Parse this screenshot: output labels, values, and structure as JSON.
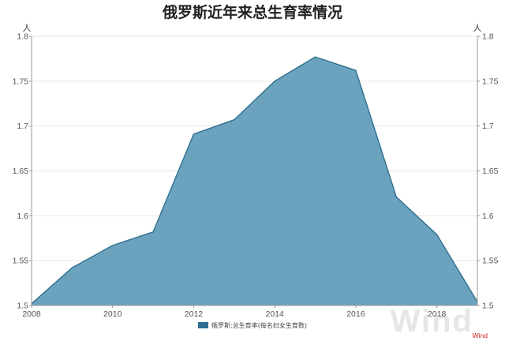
{
  "chart_data": {
    "type": "area",
    "title": "俄罗斯近年来总生育率情况",
    "x": [
      2008,
      2009,
      2010,
      2011,
      2012,
      2013,
      2014,
      2015,
      2016,
      2017,
      2018,
      2019
    ],
    "series": [
      {
        "name": "俄罗斯:总生育率(每名妇女生育数)",
        "values": [
          1.502,
          1.542,
          1.567,
          1.582,
          1.691,
          1.707,
          1.75,
          1.777,
          1.762,
          1.621,
          1.579,
          1.504
        ]
      }
    ],
    "x_ticks": [
      "2008",
      "2010",
      "2012",
      "2014",
      "2016",
      "2018"
    ],
    "y_ticks": [
      "1.5",
      "1.55",
      "1.6",
      "1.65",
      "1.7",
      "1.75",
      "1.8"
    ],
    "xlim": [
      2008,
      2019
    ],
    "ylim": [
      1.5,
      1.8
    ],
    "ylabel_left": "人",
    "ylabel_right": "人",
    "grid": true,
    "legend_position": "bottom-center",
    "colors": {
      "area_fill": "#6ba3be",
      "area_line": "#2f6f8f",
      "legend_swatch": "#2f6f8f",
      "grid": "#e6e6e6",
      "axis": "#999999"
    },
    "source": "Wind",
    "watermark": "Wind"
  }
}
